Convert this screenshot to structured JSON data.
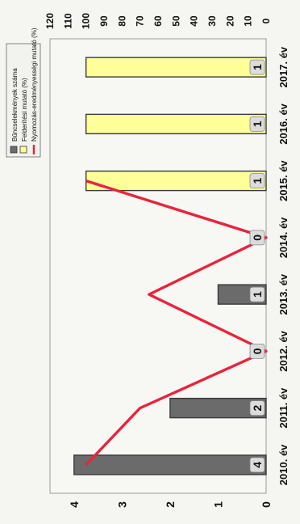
{
  "chart_data": {
    "type": "bar",
    "categories": [
      "2010. év",
      "2011. év",
      "2012. év",
      "2013. év",
      "2014. év",
      "2015. év",
      "2016. év",
      "2017. év"
    ],
    "series": [
      {
        "name": "Bűncselekmények száma",
        "kind": "bar",
        "axis": "left",
        "color": "#6b6b6b",
        "values": [
          4,
          2,
          0,
          1,
          0,
          null,
          null,
          null
        ]
      },
      {
        "name": "Felderítési mutató (%)",
        "kind": "bar",
        "axis": "right",
        "color": "#ffff99",
        "values": [
          null,
          null,
          null,
          null,
          null,
          100,
          100,
          100
        ]
      },
      {
        "name": "Nyomozás-eredményességi mutató (%)",
        "kind": "line",
        "axis": "right",
        "color": "#e8243c",
        "values": [
          100,
          70,
          0,
          65,
          0,
          100,
          null,
          null
        ]
      }
    ],
    "data_labels": [
      "4",
      "2",
      "0",
      "1",
      "0",
      "1",
      "1",
      "1"
    ],
    "left_axis": {
      "ticks": [
        "0",
        "1",
        "2",
        "3",
        "4"
      ],
      "range": [
        0,
        4.5
      ]
    },
    "right_axis": {
      "ticks": [
        "0",
        "10",
        "20",
        "30",
        "40",
        "50",
        "60",
        "70",
        "80",
        "90",
        "100",
        "110",
        "120"
      ],
      "range": [
        0,
        120
      ]
    },
    "legend": "top-left",
    "orientation": "rotated 90 degrees counter-clockwise"
  }
}
